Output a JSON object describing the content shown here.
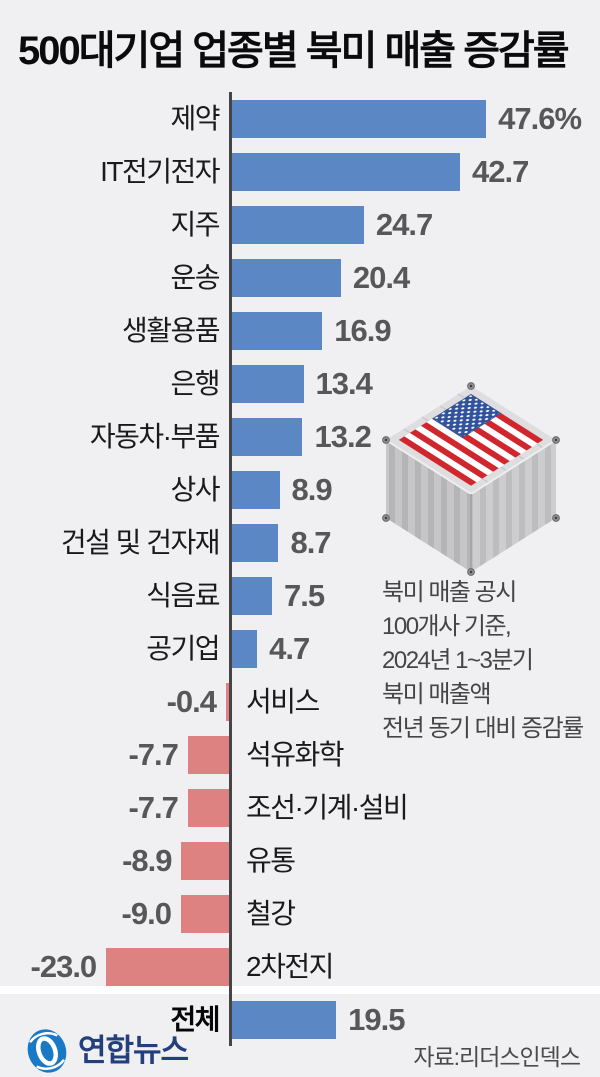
{
  "header": {
    "title": "500대기업 업종별 북미 매출 증감률"
  },
  "chart_data": {
    "type": "bar",
    "orientation": "horizontal",
    "title": "500대기업 업종별 북미 매출 증감률",
    "unit": "%",
    "categories": [
      "제약",
      "IT전기전자",
      "지주",
      "운송",
      "생활용품",
      "은행",
      "자동차·부품",
      "상사",
      "건설 및 건자재",
      "식음료",
      "공기업",
      "서비스",
      "석유화학",
      "조선·기계·설비",
      "유통",
      "철강",
      "2차전지",
      "전체"
    ],
    "values": [
      47.6,
      42.7,
      24.7,
      20.4,
      16.9,
      13.4,
      13.2,
      8.9,
      8.7,
      7.5,
      4.7,
      -0.4,
      -7.7,
      -7.7,
      -8.9,
      -9.0,
      -23.0,
      19.5
    ],
    "value_labels": [
      "47.6%",
      "42.7",
      "24.7",
      "20.4",
      "16.9",
      "13.4",
      "13.2",
      "8.9",
      "8.7",
      "7.5",
      "4.7",
      "-0.4",
      "-7.7",
      "-7.7",
      "-8.9",
      "-9.0",
      "-23.0",
      "19.5"
    ],
    "total_category": "전체",
    "colors": {
      "positive_bar": "#5b88c5",
      "negative_bar": "#de8181",
      "axis": "#454547",
      "value_text": "#57575a",
      "category_text": "#1a1a1c",
      "background": "#f0f0f2"
    },
    "legend": null,
    "grid": false
  },
  "annotation": {
    "lines": [
      "북미 매출 공시",
      "100개사 기준,",
      "2024년 1~3분기",
      "북미 매출액",
      "전년 동기 대비 증감률"
    ]
  },
  "illustration": {
    "description": "us-flag-shipping-container"
  },
  "footer": {
    "logo_text": "연합뉴스",
    "source": "자료:리더스인덱스"
  }
}
